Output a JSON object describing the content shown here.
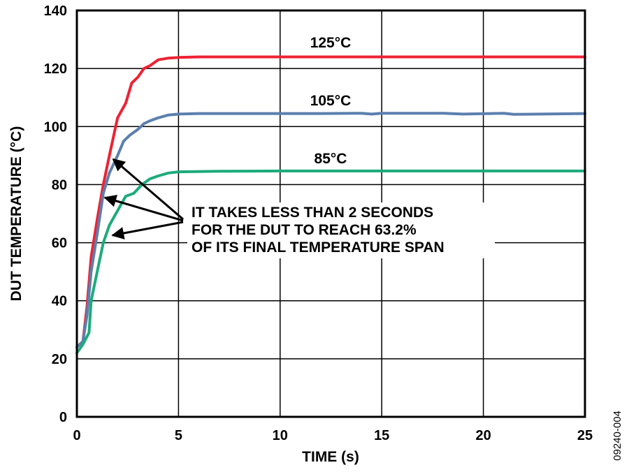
{
  "chart_data": {
    "type": "line",
    "title": "",
    "xlabel": "TIME (s)",
    "ylabel": "DUT TEMPERATURE (°C)",
    "xlim": [
      0,
      25
    ],
    "ylim": [
      0,
      140
    ],
    "xticks": [
      0,
      5,
      10,
      15,
      20,
      25
    ],
    "yticks": [
      0,
      20,
      40,
      60,
      80,
      100,
      120,
      140
    ],
    "grid": true,
    "series": [
      {
        "name": "125°C",
        "color": "#ee2233",
        "x": [
          0,
          0.3,
          0.5,
          0.7,
          1.0,
          1.3,
          1.6,
          2.0,
          2.4,
          2.7,
          3.0,
          3.3,
          3.6,
          4.0,
          4.5,
          5.0,
          6,
          8,
          10,
          12,
          15,
          18,
          20,
          22,
          25
        ],
        "y": [
          24,
          26,
          38,
          55,
          68,
          80,
          90,
          103,
          108,
          115,
          117,
          120,
          121,
          123,
          123.6,
          123.8,
          124,
          124,
          124,
          124,
          124,
          124,
          124,
          124,
          124
        ]
      },
      {
        "name": "105°C",
        "color": "#5b7fae",
        "x": [
          0,
          0.3,
          0.5,
          0.7,
          1.0,
          1.3,
          1.6,
          2.0,
          2.3,
          2.6,
          3.0,
          3.3,
          3.6,
          4.0,
          4.5,
          5.0,
          6,
          8,
          10,
          12,
          14,
          14.5,
          15,
          18,
          19,
          21,
          21.5,
          25
        ],
        "y": [
          24,
          26,
          35,
          50,
          63,
          77,
          84,
          90,
          95,
          97,
          99,
          101,
          102,
          103,
          104,
          104.3,
          104.5,
          104.5,
          104.5,
          104.5,
          104.6,
          104.3,
          104.6,
          104.6,
          104.3,
          104.6,
          104.2,
          104.5
        ]
      },
      {
        "name": "85°C",
        "color": "#1cab7a",
        "x": [
          0,
          0.3,
          0.6,
          0.7,
          1.0,
          1.3,
          1.6,
          2.0,
          2.4,
          2.8,
          3.2,
          3.6,
          4.0,
          4.5,
          5.0,
          7,
          10,
          15,
          20,
          25
        ],
        "y": [
          22,
          25,
          29,
          40,
          50,
          60,
          66,
          71,
          76,
          77,
          80,
          82,
          83,
          84,
          84.4,
          84.6,
          84.7,
          84.7,
          84.7,
          84.7
        ]
      }
    ],
    "annotation": {
      "lines": [
        "IT TAKES LESS THAN 2 SECONDS",
        "FOR THE DUT TO REACH 63.2%",
        "OF ITS FINAL TEMPERATURE SPAN"
      ]
    }
  },
  "figure_id": "09240-004"
}
